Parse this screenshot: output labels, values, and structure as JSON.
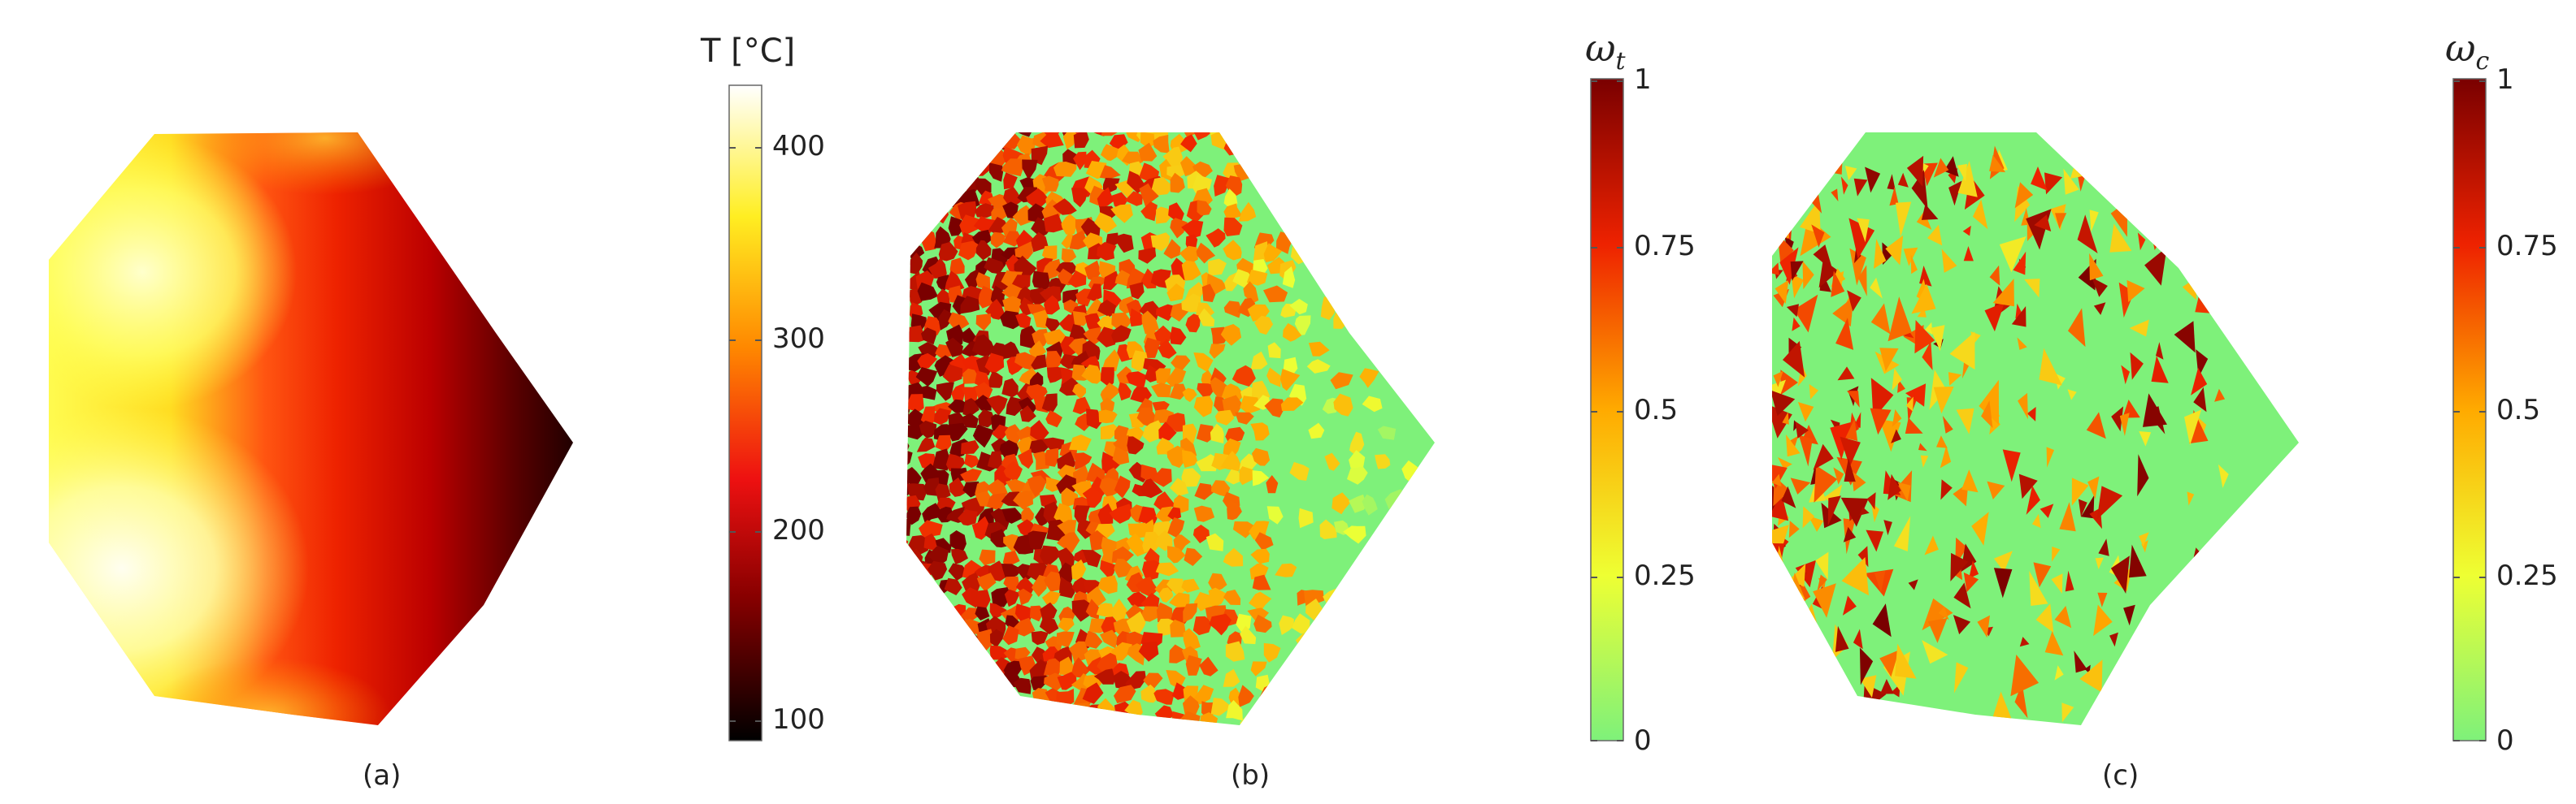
{
  "panels": [
    {
      "label": "(a)",
      "field": "temperature"
    },
    {
      "label": "(b)",
      "field": "tensile damage"
    },
    {
      "label": "(c)",
      "field": "compressive damage"
    }
  ],
  "colorbars": [
    {
      "title": "T [°C]",
      "ticks": [
        "400",
        "300",
        "200",
        "100"
      ],
      "range": [
        90,
        435
      ]
    },
    {
      "title_symbol": "ω",
      "title_sub": "t",
      "ticks": [
        "1",
        "0.75",
        "0.5",
        "0.25",
        "0"
      ],
      "range": [
        0,
        1
      ]
    },
    {
      "title_symbol": "ω",
      "title_sub": "c",
      "ticks": [
        "1",
        "0.75",
        "0.5",
        "0.25",
        "0"
      ],
      "range": [
        0,
        1
      ]
    }
  ],
  "colors": {
    "undamaged": "#7ef17a",
    "hot_white": "#fffdf0",
    "yellow": "#ffff33",
    "orange": "#ff9900",
    "red": "#ee1111",
    "dark_red": "#8b0000",
    "black": "#000000"
  }
}
